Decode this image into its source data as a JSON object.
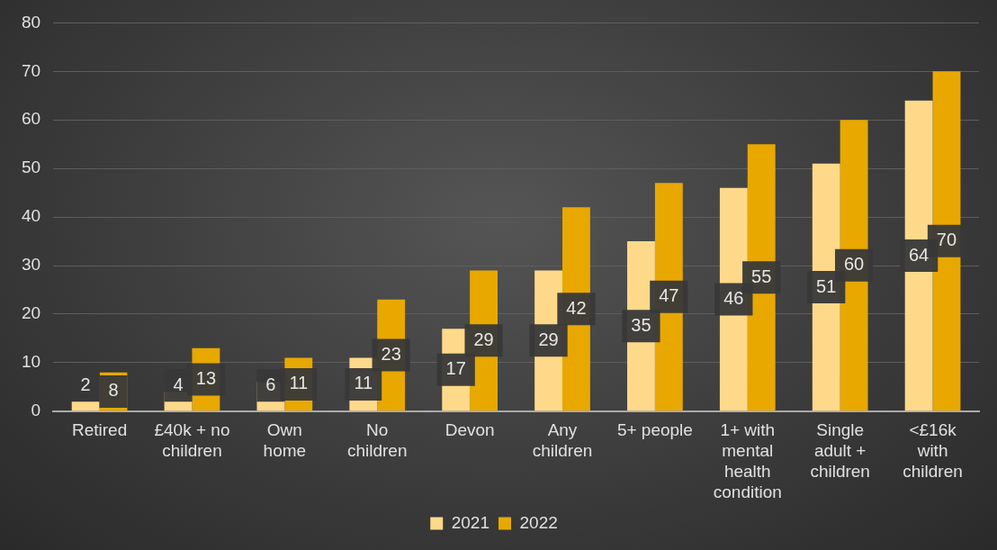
{
  "chart_data": {
    "type": "bar",
    "categories": [
      "Retired",
      "£40k + no children",
      "Own home",
      "No children",
      "Devon",
      "Any children",
      "5+ people",
      "1+ with mental health condition",
      "Single adult + children",
      "<£16k with children"
    ],
    "series": [
      {
        "name": "2021",
        "color": "#ffd98a",
        "values": [
          2,
          4,
          6,
          11,
          17,
          29,
          35,
          46,
          51,
          64
        ]
      },
      {
        "name": "2022",
        "color": "#e8a800",
        "values": [
          8,
          13,
          11,
          23,
          29,
          42,
          47,
          55,
          60,
          70
        ]
      }
    ],
    "ylim": [
      0,
      80
    ],
    "yticks": [
      0,
      10,
      20,
      30,
      40,
      50,
      60,
      70,
      80
    ],
    "grid": "y",
    "legend": "bottom",
    "data_labels": true
  }
}
